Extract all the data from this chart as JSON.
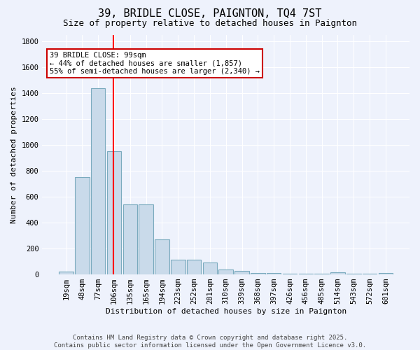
{
  "title": "39, BRIDLE CLOSE, PAIGNTON, TQ4 7ST",
  "subtitle": "Size of property relative to detached houses in Paignton",
  "xlabel": "Distribution of detached houses by size in Paignton",
  "ylabel": "Number of detached properties",
  "bar_color": "#c9daea",
  "bar_edge_color": "#7aaabe",
  "background_color": "#eef2fc",
  "grid_color": "#ffffff",
  "categories": [
    "19sqm",
    "48sqm",
    "77sqm",
    "106sqm",
    "135sqm",
    "165sqm",
    "194sqm",
    "223sqm",
    "252sqm",
    "281sqm",
    "310sqm",
    "339sqm",
    "368sqm",
    "397sqm",
    "426sqm",
    "456sqm",
    "485sqm",
    "514sqm",
    "543sqm",
    "572sqm",
    "601sqm"
  ],
  "values": [
    20,
    750,
    1440,
    950,
    540,
    540,
    270,
    115,
    115,
    90,
    40,
    25,
    10,
    10,
    5,
    5,
    5,
    15,
    5,
    5,
    10
  ],
  "redline_x": 2.95,
  "annotation_text": "39 BRIDLE CLOSE: 99sqm\n← 44% of detached houses are smaller (1,857)\n55% of semi-detached houses are larger (2,340) →",
  "annotation_box_color": "#ffffff",
  "annotation_box_edge": "#cc0000",
  "footer_line1": "Contains HM Land Registry data © Crown copyright and database right 2025.",
  "footer_line2": "Contains public sector information licensed under the Open Government Licence v3.0.",
  "ylim": [
    0,
    1850
  ],
  "yticks": [
    0,
    200,
    400,
    600,
    800,
    1000,
    1200,
    1400,
    1600,
    1800
  ],
  "title_fontsize": 11,
  "subtitle_fontsize": 9,
  "axis_fontsize": 8,
  "tick_fontsize": 7.5,
  "footer_fontsize": 6.5,
  "annot_fontsize": 7.5
}
